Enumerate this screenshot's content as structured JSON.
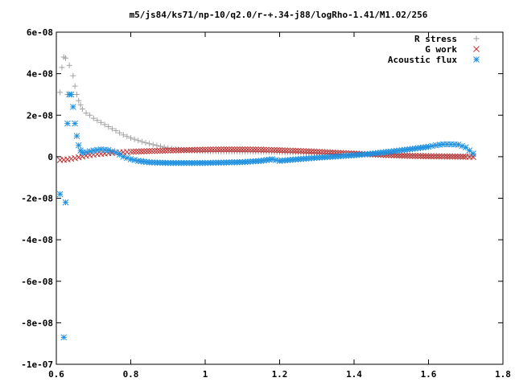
{
  "chart_data": {
    "type": "scatter",
    "title": "m5/js84/ks71/np-10/q2.0/r-+.34-j88/logRho-1.41/M1.02/256",
    "xlabel": "",
    "ylabel": "",
    "xlim": [
      0.6,
      1.8
    ],
    "ylim": [
      -1e-07,
      6e-08
    ],
    "grid": false,
    "legend_position": "top-right",
    "x_ticks": [
      {
        "v": 0.6,
        "label": "0.6"
      },
      {
        "v": 0.8,
        "label": "0.8"
      },
      {
        "v": 1.0,
        "label": "1"
      },
      {
        "v": 1.2,
        "label": "1.2"
      },
      {
        "v": 1.4,
        "label": "1.4"
      },
      {
        "v": 1.6,
        "label": "1.6"
      },
      {
        "v": 1.8,
        "label": "1.8"
      }
    ],
    "y_ticks": [
      {
        "v": 6e-08,
        "label": "6e-08"
      },
      {
        "v": 4e-08,
        "label": "4e-08"
      },
      {
        "v": 2e-08,
        "label": "2e-08"
      },
      {
        "v": 0,
        "label": "0"
      },
      {
        "v": -2e-08,
        "label": "-2e-08"
      },
      {
        "v": -4e-08,
        "label": "-4e-08"
      },
      {
        "v": -6e-08,
        "label": "-6e-08"
      },
      {
        "v": -8e-08,
        "label": "-8e-08"
      },
      {
        "v": -1e-07,
        "label": "-1e-07"
      }
    ],
    "series": [
      {
        "name": "R stress",
        "marker": "plus",
        "color": "#a0a0a0",
        "x": [
          0.61,
          0.615,
          0.62,
          0.625,
          0.63,
          0.635,
          0.64,
          0.645,
          0.65,
          0.655,
          0.66,
          0.665,
          0.67,
          0.68,
          0.69,
          0.7,
          0.72,
          0.74,
          0.76,
          0.78,
          0.8,
          0.82,
          0.84,
          0.86,
          0.88,
          0.9,
          0.92,
          0.95,
          1.0,
          1.05,
          1.1,
          1.15,
          1.2,
          1.25,
          1.3,
          1.35,
          1.4,
          1.45,
          1.5,
          1.55,
          1.6,
          1.65,
          1.7,
          1.72
        ],
        "y": [
          3.1e-08,
          4.3e-08,
          4.8e-08,
          4.75e-08,
          3e-08,
          4.4e-08,
          3e-08,
          3.9e-08,
          3.4e-08,
          3e-08,
          2.7e-08,
          2.5e-08,
          2.3e-08,
          2.1e-08,
          2e-08,
          1.85e-08,
          1.65e-08,
          1.45e-08,
          1.25e-08,
          1.05e-08,
          9e-09,
          7.8e-09,
          6.7e-09,
          5.8e-09,
          5e-09,
          4.2e-09,
          3.7e-09,
          3.1e-09,
          2.6e-09,
          2.5e-09,
          2.4e-09,
          2.4e-09,
          2.2e-09,
          2e-09,
          1.7e-09,
          1.5e-09,
          1.2e-09,
          1e-09,
          8e-10,
          6e-10,
          4e-10,
          3e-10,
          2e-10,
          1e-10
        ]
      },
      {
        "name": "G work",
        "marker": "cross",
        "color": "#c03030",
        "x": [
          0.61,
          0.62,
          0.63,
          0.64,
          0.65,
          0.66,
          0.67,
          0.68,
          0.7,
          0.72,
          0.74,
          0.76,
          0.78,
          0.8,
          0.85,
          0.9,
          0.95,
          1.0,
          1.05,
          1.1,
          1.15,
          1.2,
          1.25,
          1.3,
          1.35,
          1.4,
          1.45,
          1.5,
          1.55,
          1.6,
          1.65,
          1.7,
          1.72
        ],
        "y": [
          -1.6e-09,
          -1.5e-09,
          -1.3e-09,
          -1e-09,
          -7e-10,
          -3e-10,
          1e-10,
          5e-10,
          1e-09,
          1.4e-09,
          1.7e-09,
          2e-09,
          2.2e-09,
          2.4e-09,
          2.7e-09,
          3e-09,
          3.2e-09,
          3.4e-09,
          3.5e-09,
          3.5e-09,
          3.4e-09,
          3.1e-09,
          2.8e-09,
          2.4e-09,
          1.9e-09,
          1.5e-09,
          1.1e-09,
          7e-10,
          4e-10,
          2e-10,
          1e-10,
          0,
          -1e-10
        ]
      },
      {
        "name": "Acoustic flux",
        "marker": "star",
        "color": "#1e90e0",
        "x": [
          0.61,
          0.62,
          0.625,
          0.63,
          0.635,
          0.64,
          0.645,
          0.65,
          0.655,
          0.66,
          0.665,
          0.67,
          0.68,
          0.7,
          0.72,
          0.74,
          0.76,
          0.78,
          0.8,
          0.82,
          0.85,
          0.9,
          0.95,
          1.0,
          1.05,
          1.1,
          1.15,
          1.18,
          1.2,
          1.25,
          1.3,
          1.35,
          1.4,
          1.45,
          1.5,
          1.55,
          1.6,
          1.62,
          1.64,
          1.66,
          1.68,
          1.7,
          1.72
        ],
        "y": [
          -1.8e-08,
          -8.7e-08,
          -2.2e-08,
          1.6e-08,
          3e-08,
          3e-08,
          2.4e-08,
          1.6e-08,
          1e-08,
          5.5e-09,
          3e-09,
          2e-09,
          2.2e-09,
          3e-09,
          3.5e-09,
          3.2e-09,
          2e-09,
          0,
          -1.2e-09,
          -2e-09,
          -2.7e-09,
          -3e-09,
          -3e-09,
          -3e-09,
          -2.8e-09,
          -2.6e-09,
          -2e-09,
          -1.2e-09,
          -2e-09,
          -1.2e-09,
          -5e-10,
          1e-10,
          7e-10,
          1.5e-09,
          2.5e-09,
          3.6e-09,
          4.8e-09,
          5.5e-09,
          6e-09,
          6e-09,
          5.8e-09,
          4.5e-09,
          1.5e-09
        ]
      }
    ]
  }
}
